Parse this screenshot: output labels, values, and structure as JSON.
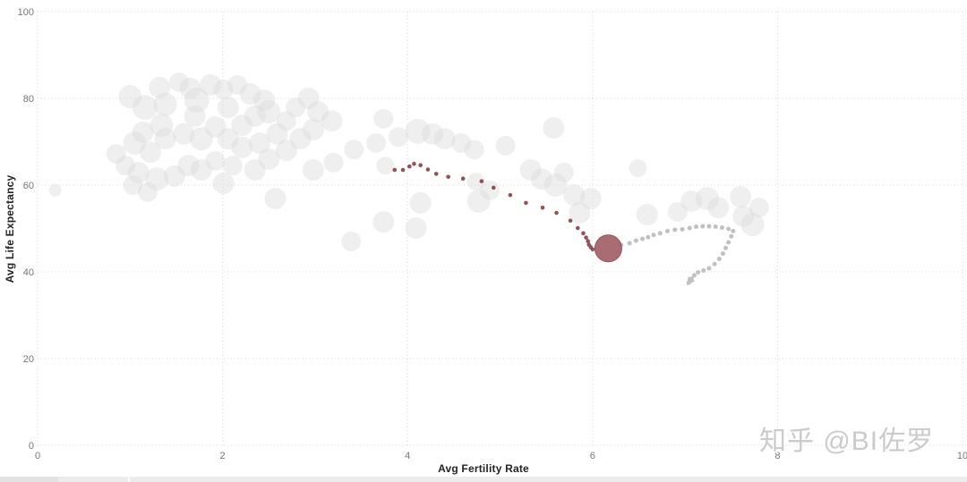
{
  "watermark": {
    "text": "知乎 @BI佐罗",
    "color": "#cbcbcb"
  },
  "footer": {
    "visible": true
  },
  "chart_data": {
    "type": "scatter",
    "subtype": "bubble-trail-animation",
    "title": "",
    "xlabel": "Avg Fertility Rate",
    "ylabel": "Avg Life Expectancy",
    "xlim": [
      0,
      10.05
    ],
    "ylim": [
      0,
      100
    ],
    "x_ticks": [
      0,
      2,
      4,
      6,
      8,
      10
    ],
    "y_ticks": [
      0,
      20,
      40,
      60,
      80,
      100
    ],
    "grid": "dotted",
    "colors": {
      "background_bubble": "#d8d8d8",
      "selected_trail": "#8a434b",
      "selected_bubble_fill": "#a3646a",
      "selected_bubble_stroke": "#93525a",
      "comparison_trail": "#c1c1c1",
      "gridline": "#d9d9d9",
      "tick_label": "#777777",
      "axis_title": "#252423"
    },
    "background_bubbles": [
      [
        1.0,
        80.4,
        13
      ],
      [
        1.16,
        77.9,
        14
      ],
      [
        1.32,
        82.5,
        12
      ],
      [
        1.38,
        78.6,
        13
      ],
      [
        1.53,
        83.7,
        11
      ],
      [
        1.65,
        82.3,
        12
      ],
      [
        1.72,
        79.6,
        14
      ],
      [
        1.87,
        83.1,
        12
      ],
      [
        1.7,
        75.9,
        12
      ],
      [
        1.34,
        73.8,
        13
      ],
      [
        1.14,
        72.2,
        12
      ],
      [
        1.05,
        69.7,
        13
      ],
      [
        1.22,
        67.6,
        12
      ],
      [
        1.38,
        70.7,
        12
      ],
      [
        1.58,
        71.8,
        12
      ],
      [
        1.77,
        70.7,
        13
      ],
      [
        1.92,
        73.4,
        12
      ],
      [
        2.06,
        77.9,
        12
      ],
      [
        2.01,
        82.1,
        11
      ],
      [
        2.16,
        83.1,
        11
      ],
      [
        2.3,
        81.0,
        12
      ],
      [
        2.45,
        79.6,
        12
      ],
      [
        2.5,
        76.9,
        13
      ],
      [
        2.35,
        75.9,
        12
      ],
      [
        2.21,
        73.8,
        12
      ],
      [
        2.06,
        70.7,
        12
      ],
      [
        2.21,
        68.7,
        12
      ],
      [
        2.4,
        69.7,
        12
      ],
      [
        2.59,
        71.8,
        12
      ],
      [
        2.69,
        74.8,
        11
      ],
      [
        2.79,
        77.9,
        11
      ],
      [
        2.93,
        80.0,
        12
      ],
      [
        3.03,
        76.9,
        12
      ],
      [
        3.18,
        74.8,
        12
      ],
      [
        2.98,
        72.8,
        12
      ],
      [
        2.84,
        70.7,
        12
      ],
      [
        2.69,
        68.0,
        12
      ],
      [
        2.5,
        66.0,
        12
      ],
      [
        2.35,
        63.5,
        12
      ],
      [
        2.11,
        64.5,
        11
      ],
      [
        1.92,
        65.6,
        11
      ],
      [
        1.77,
        63.5,
        12
      ],
      [
        1.63,
        64.5,
        12
      ],
      [
        1.48,
        62.1,
        12
      ],
      [
        1.29,
        61.4,
        13
      ],
      [
        1.09,
        62.9,
        12
      ],
      [
        0.95,
        64.5,
        11
      ],
      [
        0.85,
        67.2,
        11
      ],
      [
        1.03,
        60.0,
        11
      ],
      [
        1.19,
        58.4,
        11
      ],
      [
        2.01,
        60.4,
        12
      ],
      [
        2.98,
        63.5,
        12
      ],
      [
        3.2,
        65.2,
        11
      ],
      [
        3.42,
        68.2,
        11
      ],
      [
        2.57,
        56.9,
        12
      ],
      [
        3.39,
        47.0,
        11
      ],
      [
        3.74,
        51.5,
        12
      ],
      [
        3.66,
        69.7,
        11
      ],
      [
        3.74,
        75.3,
        11
      ],
      [
        3.9,
        71.1,
        11
      ],
      [
        4.11,
        72.4,
        14
      ],
      [
        4.27,
        71.8,
        12
      ],
      [
        4.4,
        70.7,
        12
      ],
      [
        4.58,
        69.7,
        11
      ],
      [
        4.72,
        68.2,
        11
      ],
      [
        4.14,
        55.9,
        12
      ],
      [
        4.09,
        50.1,
        12
      ],
      [
        4.77,
        56.3,
        13
      ],
      [
        4.89,
        58.8,
        11
      ],
      [
        4.74,
        60.8,
        10
      ],
      [
        5.06,
        69.1,
        11
      ],
      [
        5.58,
        73.2,
        12
      ],
      [
        5.33,
        63.5,
        12
      ],
      [
        5.45,
        61.4,
        12
      ],
      [
        5.6,
        60.0,
        13
      ],
      [
        5.69,
        62.9,
        11
      ],
      [
        5.8,
        57.7,
        12
      ],
      [
        5.86,
        53.6,
        12
      ],
      [
        5.98,
        56.9,
        12
      ],
      [
        6.49,
        63.9,
        10
      ],
      [
        6.59,
        53.2,
        12
      ],
      [
        6.92,
        53.8,
        11
      ],
      [
        7.07,
        56.3,
        12
      ],
      [
        7.24,
        56.9,
        13
      ],
      [
        7.36,
        54.8,
        12
      ],
      [
        7.6,
        57.3,
        12
      ],
      [
        7.63,
        52.8,
        12
      ],
      [
        7.73,
        50.9,
        13
      ],
      [
        7.8,
        54.8,
        11
      ],
      [
        0.19,
        58.8,
        7
      ],
      [
        3.76,
        64.5,
        10
      ]
    ],
    "selected_trail": {
      "name": "highlighted-country-history",
      "points": [
        [
          3.86,
          63.5
        ],
        [
          3.95,
          63.5
        ],
        [
          4.02,
          64.3
        ],
        [
          4.07,
          64.9
        ],
        [
          4.14,
          64.6
        ],
        [
          4.22,
          63.6
        ],
        [
          4.31,
          62.6
        ],
        [
          4.44,
          61.9
        ],
        [
          4.6,
          61.5
        ],
        [
          4.8,
          60.9
        ],
        [
          4.93,
          59.4
        ],
        [
          5.11,
          57.7
        ],
        [
          5.28,
          55.9
        ],
        [
          5.46,
          54.8
        ],
        [
          5.61,
          53.6
        ],
        [
          5.76,
          51.8
        ],
        [
          5.84,
          50.1
        ],
        [
          5.9,
          48.9
        ],
        [
          5.93,
          47.9
        ],
        [
          5.95,
          47.1
        ],
        [
          5.96,
          46.3
        ],
        [
          5.98,
          45.7
        ],
        [
          6.0,
          45.2
        ]
      ],
      "current_point": {
        "x": 6.17,
        "y": 45.4,
        "radius_px": 15
      }
    },
    "comparison_trail": {
      "name": "comparison-country-history",
      "points": [
        [
          6.31,
          46.2
        ],
        [
          6.4,
          46.6
        ],
        [
          6.47,
          47.2
        ],
        [
          6.54,
          47.6
        ],
        [
          6.6,
          48.0
        ],
        [
          6.66,
          48.5
        ],
        [
          6.73,
          48.9
        ],
        [
          6.81,
          49.4
        ],
        [
          6.89,
          49.7
        ],
        [
          6.97,
          49.8
        ],
        [
          7.05,
          50.1
        ],
        [
          7.12,
          50.4
        ],
        [
          7.19,
          50.5
        ],
        [
          7.26,
          50.5
        ],
        [
          7.33,
          50.4
        ],
        [
          7.4,
          50.2
        ],
        [
          7.47,
          49.9
        ],
        [
          7.52,
          49.4
        ],
        [
          7.5,
          48.2
        ],
        [
          7.47,
          46.8
        ],
        [
          7.44,
          45.5
        ],
        [
          7.41,
          44.2
        ],
        [
          7.37,
          43.0
        ],
        [
          7.32,
          41.8
        ],
        [
          7.26,
          40.8
        ],
        [
          7.2,
          40.3
        ],
        [
          7.14,
          39.9
        ],
        [
          7.1,
          39.2
        ],
        [
          7.07,
          38.4
        ],
        [
          7.04,
          37.5
        ]
      ],
      "arrow_end": true
    }
  }
}
